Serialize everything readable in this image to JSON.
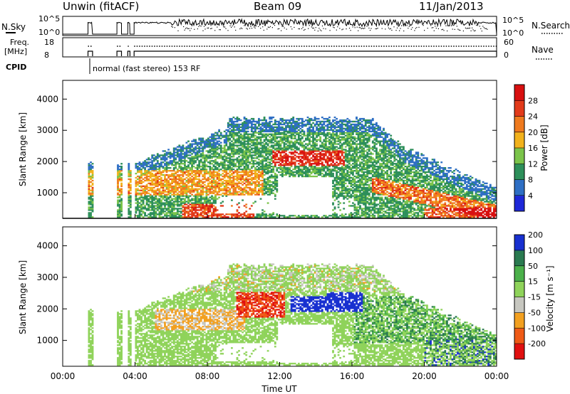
{
  "header": {
    "radar_title": "Unwin (fitACF)",
    "beam_title": "Beam 09",
    "date_title": "11/Jan/2013"
  },
  "status_panels": {
    "nsky_label": "N.Sky",
    "nsearch_label": "N.Search",
    "nsky_ticks": [
      "10^5",
      "10^0"
    ],
    "nsearch_ticks": [
      "10^5",
      "10^0"
    ],
    "freq_label_line1": "Freq.",
    "freq_label_line2": "[MHz]",
    "freq_ticks": [
      "18",
      "8"
    ],
    "nave_label": "Nave",
    "nave_ticks": [
      "60",
      "0"
    ],
    "cpid_label": "CPID",
    "cpid_text": "normal (fast stereo) 153 RF"
  },
  "chart_data": [
    {
      "type": "heatmap",
      "name_hint": "power",
      "ylabel": "Slant Range [km]",
      "yticks": [
        1000,
        2000,
        3000,
        4000
      ],
      "ylim": [
        180,
        4600
      ],
      "xlim": [
        0,
        24
      ],
      "colorbar_label": "Power [dB]",
      "colorbar_ticks": [
        4,
        8,
        12,
        16,
        20,
        24,
        28
      ],
      "colorbar_colors": [
        "#1e28d8",
        "#2e6fc4",
        "#2d8f5a",
        "#7bc44a",
        "#f2b21c",
        "#ef7a1e",
        "#e23a1a",
        "#d81010"
      ]
    },
    {
      "type": "heatmap",
      "name_hint": "velocity",
      "ylabel": "Slant Range [km]",
      "yticks": [
        1000,
        2000,
        3000,
        4000
      ],
      "ylim": [
        180,
        4600
      ],
      "xlim": [
        0,
        24
      ],
      "xlabel": "Time UT",
      "xticks": [
        "00:00",
        "04:00",
        "08:00",
        "12:00",
        "16:00",
        "20:00",
        "00:00"
      ],
      "colorbar_label": "Velocity [m s⁻¹]",
      "colorbar_ticks": [
        -200,
        -100,
        -50,
        -15,
        15,
        50,
        100,
        200
      ],
      "colorbar_tick_labels": [
        "-200",
        "-100",
        "-50",
        "-15",
        "15",
        "50",
        "100",
        "200"
      ],
      "colorbar_colors": [
        "#e01010",
        "#ef5a16",
        "#f2a020",
        "#c7c7c0",
        "#8fd35a",
        "#4bb04a",
        "#2a7a50",
        "#1830d0"
      ]
    }
  ]
}
